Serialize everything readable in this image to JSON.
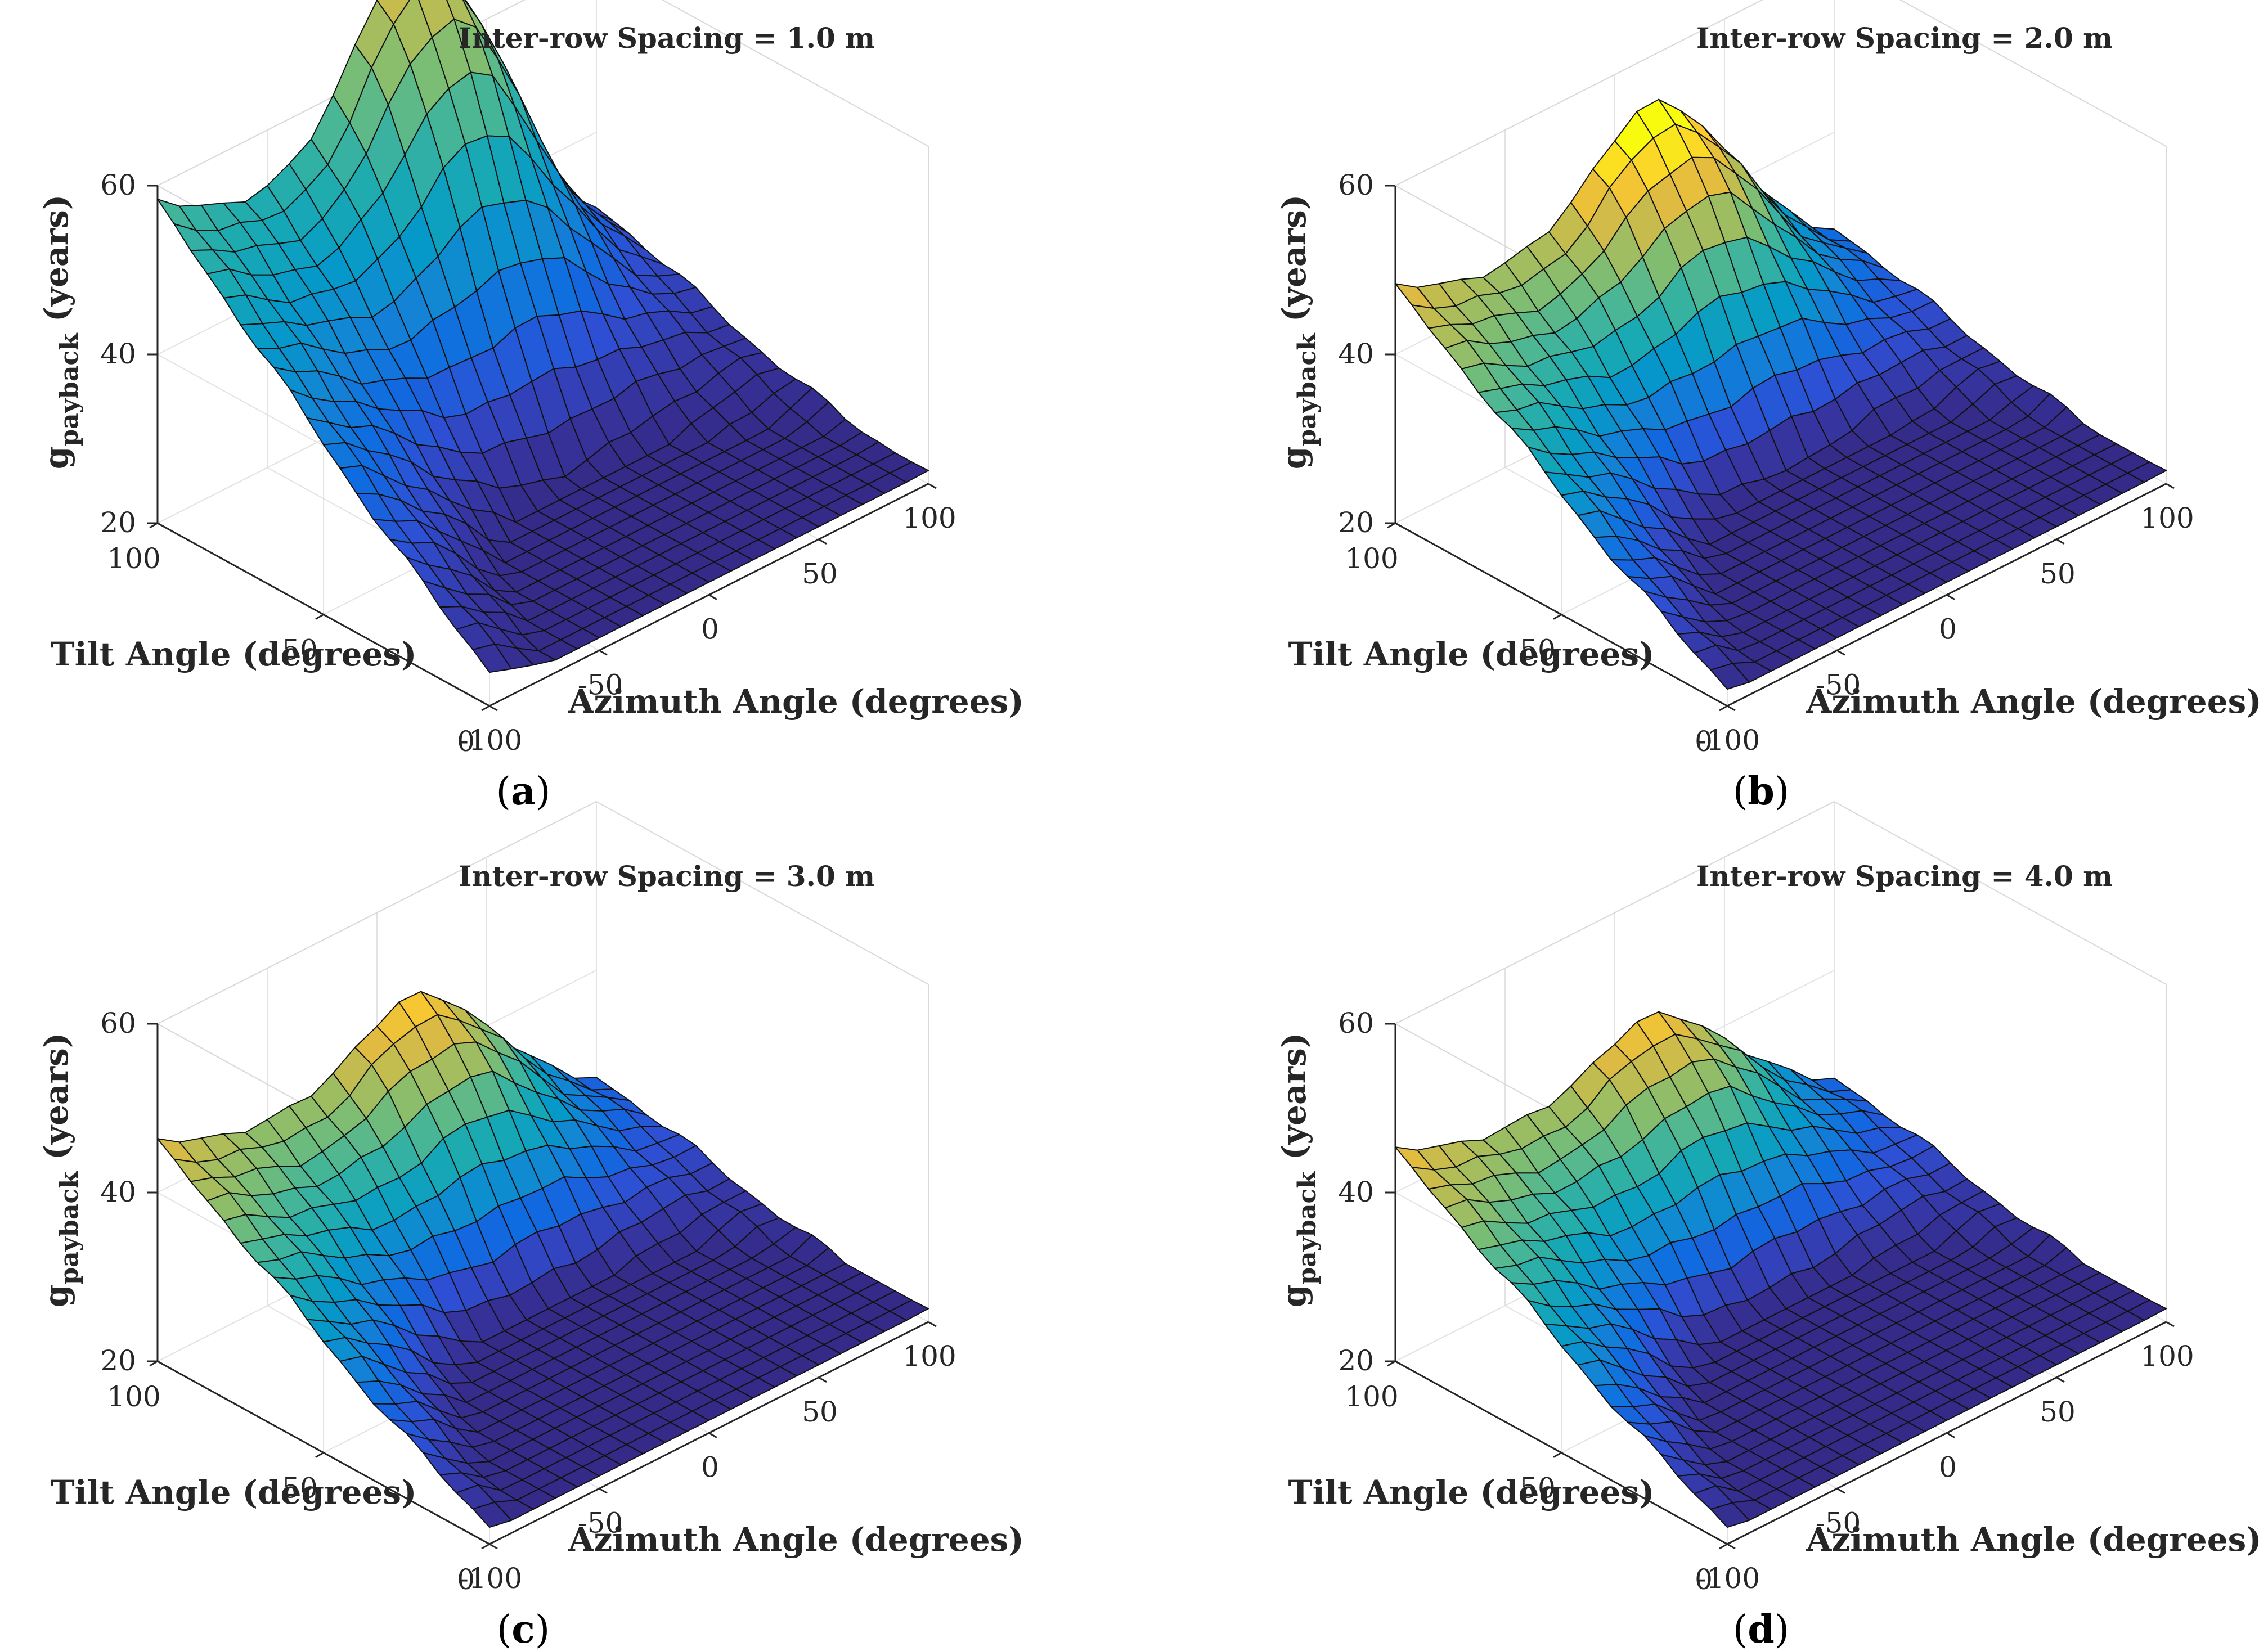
{
  "figure": {
    "panels": [
      {
        "caption_letter": "a",
        "title": "Inter-row Spacing = 1.0 m"
      },
      {
        "caption_letter": "b",
        "title": "Inter-row Spacing = 2.0 m"
      },
      {
        "caption_letter": "c",
        "title": "Inter-row Spacing = 3.0 m"
      },
      {
        "caption_letter": "d",
        "title": "Inter-row Spacing = 4.0 m"
      }
    ],
    "caption_open": "(",
    "caption_close": ")"
  },
  "chart_data": [
    {
      "type": "surface",
      "title": "Inter-row Spacing = 1.0 m",
      "xlabel": "Azimuth Angle (degrees)",
      "ylabel": "Tilt Angle (degrees)",
      "zlabel_main": "g",
      "zlabel_sub": "payback",
      "zlabel_unit": " (years)",
      "xlim": [
        -100,
        100
      ],
      "ylim": [
        0,
        100
      ],
      "zlim": [
        20,
        60
      ],
      "xticks": [
        -100,
        -50,
        0,
        50,
        100
      ],
      "yticks": [
        0,
        50,
        100
      ],
      "zticks": [
        20,
        40,
        60
      ],
      "grid": true,
      "colormap": "parula",
      "surface_model": {
        "z_min": 21.5,
        "x_at_min": 0,
        "y_at_min": 25,
        "peak_corner_z": 62,
        "high_tilt_west_z": 58,
        "low_tilt_west_z": 26,
        "low_tilt_east_z": 23,
        "high_tilt_east_z": 30,
        "color_max": 82
      }
    },
    {
      "type": "surface",
      "title": "Inter-row Spacing = 2.0 m",
      "xlabel": "Azimuth Angle (degrees)",
      "ylabel": "Tilt Angle (degrees)",
      "zlabel_main": "g",
      "zlabel_sub": "payback",
      "zlabel_unit": " (years)",
      "xlim": [
        -100,
        100
      ],
      "ylim": [
        0,
        100
      ],
      "zlim": [
        20,
        60
      ],
      "xticks": [
        -100,
        -50,
        0,
        50,
        100
      ],
      "yticks": [
        0,
        50,
        100
      ],
      "zticks": [
        20,
        40,
        60
      ],
      "grid": true,
      "colormap": "parula",
      "surface_model": {
        "z_min": 21.5,
        "x_at_min": 0,
        "y_at_min": 25,
        "peak_corner_z": 49,
        "high_tilt_west_z": 48,
        "low_tilt_west_z": 24,
        "low_tilt_east_z": 23,
        "high_tilt_east_z": 28,
        "color_max": 52
      }
    },
    {
      "type": "surface",
      "title": "Inter-row Spacing = 3.0 m",
      "xlabel": "Azimuth Angle (degrees)",
      "ylabel": "Tilt Angle (degrees)",
      "zlabel_main": "g",
      "zlabel_sub": "payback",
      "zlabel_unit": " (years)",
      "xlim": [
        -100,
        100
      ],
      "ylim": [
        0,
        100
      ],
      "zlim": [
        20,
        60
      ],
      "xticks": [
        -100,
        -50,
        0,
        50,
        100
      ],
      "yticks": [
        0,
        50,
        100
      ],
      "zticks": [
        20,
        40,
        60
      ],
      "grid": true,
      "colormap": "parula",
      "surface_model": {
        "z_min": 21.5,
        "x_at_min": 0,
        "y_at_min": 25,
        "peak_corner_z": 44,
        "high_tilt_west_z": 46,
        "low_tilt_west_z": 24,
        "low_tilt_east_z": 23,
        "high_tilt_east_z": 27,
        "color_max": 50
      }
    },
    {
      "type": "surface",
      "title": "Inter-row Spacing = 4.0 m",
      "xlabel": "Azimuth Angle (degrees)",
      "ylabel": "Tilt Angle (degrees)",
      "zlabel_main": "g",
      "zlabel_sub": "payback",
      "zlabel_unit": " (years)",
      "xlim": [
        -100,
        100
      ],
      "ylim": [
        0,
        100
      ],
      "zlim": [
        20,
        60
      ],
      "xticks": [
        -100,
        -50,
        0,
        50,
        100
      ],
      "yticks": [
        0,
        50,
        100
      ],
      "zticks": [
        20,
        40,
        60
      ],
      "grid": true,
      "colormap": "parula",
      "surface_model": {
        "z_min": 21.5,
        "x_at_min": 0,
        "y_at_min": 25,
        "peak_corner_z": 42,
        "high_tilt_west_z": 45,
        "low_tilt_west_z": 24,
        "low_tilt_east_z": 23,
        "high_tilt_east_z": 27,
        "color_max": 48
      }
    }
  ]
}
